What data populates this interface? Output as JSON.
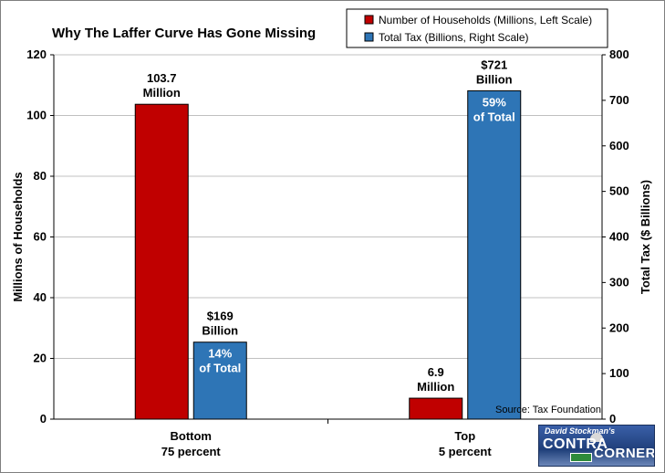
{
  "chart_data": {
    "type": "bar",
    "title": "Why The Laffer Curve Has Gone Missing",
    "categories": [
      [
        "Bottom",
        "75 percent"
      ],
      [
        "Top",
        "5 percent"
      ]
    ],
    "series": [
      {
        "name": "Number of Households (Millions, Left Scale)",
        "axis": "left",
        "color": "#c00000",
        "values": [
          103.7,
          6.9
        ],
        "labels": [
          [
            "103.7",
            "Million"
          ],
          [
            "6.9",
            "Million"
          ]
        ],
        "inner_labels": [
          [],
          []
        ]
      },
      {
        "name": "Total Tax (Billions, Right Scale)",
        "axis": "right",
        "color": "#2e75b6",
        "values": [
          169,
          721
        ],
        "labels": [
          [
            "$169",
            "Billion"
          ],
          [
            "$721",
            "Billion"
          ]
        ],
        "inner_labels": [
          [
            "14%",
            "of Total"
          ],
          [
            "59%",
            "of Total"
          ]
        ]
      }
    ],
    "y_left": {
      "label": "Millions of Households",
      "lim": [
        0,
        120
      ],
      "ticks": [
        0,
        20,
        40,
        60,
        80,
        100,
        120
      ]
    },
    "y_right": {
      "label": "Total Tax ($ Billions)",
      "lim": [
        0,
        800
      ],
      "ticks": [
        0,
        100,
        200,
        300,
        400,
        500,
        600,
        700,
        800
      ]
    },
    "grid": true,
    "legend_position": "top-right",
    "annotation": "Source: Tax Foundation"
  },
  "logo": {
    "top_text": "David Stockman's",
    "left_text": "CONTRA",
    "right_text": "CORNER"
  }
}
